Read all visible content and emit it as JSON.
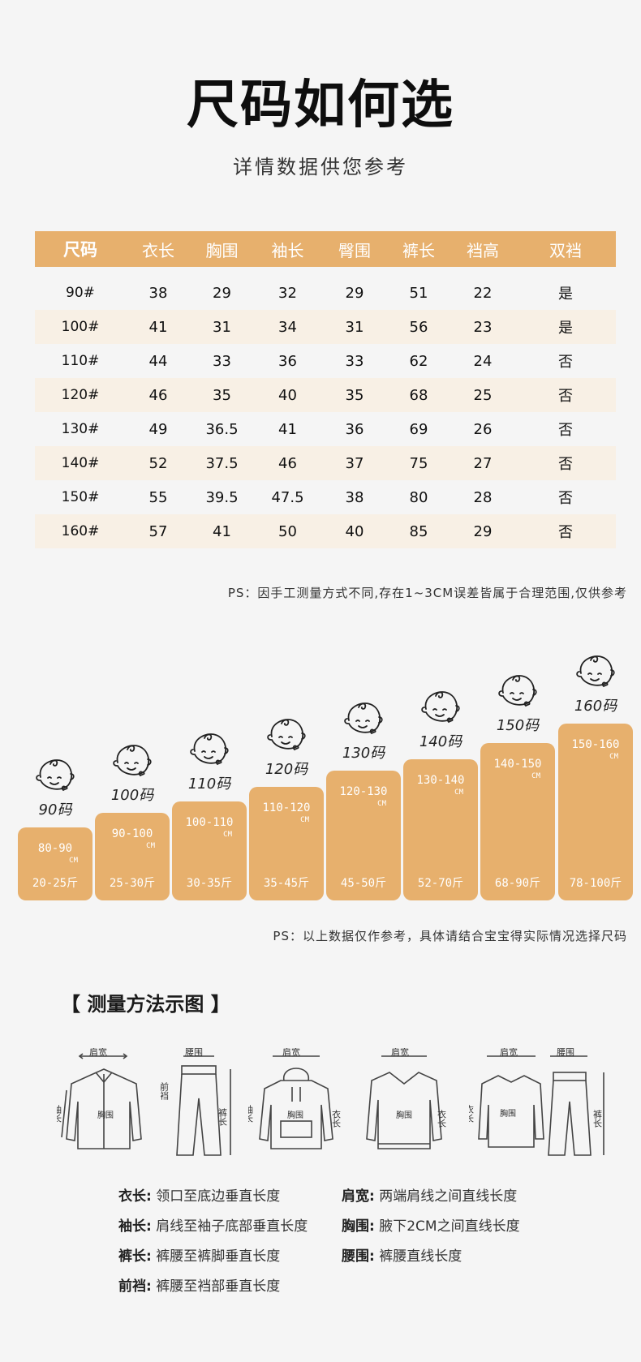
{
  "header": {
    "title": "尺码如何选",
    "subtitle": "详情数据供您参考"
  },
  "size_table": {
    "columns": [
      "尺码",
      "衣长",
      "胸围",
      "袖长",
      "臀围",
      "裤长",
      "裆高",
      "双裆"
    ],
    "rows": [
      [
        "90#",
        "38",
        "29",
        "32",
        "29",
        "51",
        "22",
        "是"
      ],
      [
        "100#",
        "41",
        "31",
        "34",
        "31",
        "56",
        "23",
        "是"
      ],
      [
        "110#",
        "44",
        "33",
        "36",
        "33",
        "62",
        "24",
        "否"
      ],
      [
        "120#",
        "46",
        "35",
        "40",
        "35",
        "68",
        "25",
        "否"
      ],
      [
        "130#",
        "49",
        "36.5",
        "41",
        "36",
        "69",
        "26",
        "否"
      ],
      [
        "140#",
        "52",
        "37.5",
        "46",
        "37",
        "75",
        "27",
        "否"
      ],
      [
        "150#",
        "55",
        "39.5",
        "47.5",
        "38",
        "80",
        "28",
        "否"
      ],
      [
        "160#",
        "57",
        "41",
        "50",
        "40",
        "85",
        "29",
        "否"
      ]
    ]
  },
  "note1": "PS：因手工测量方式不同,存在1~3CM误差皆属于合理范围,仅供参考",
  "size_guide": {
    "unit": "CM",
    "items": [
      {
        "label": "90码",
        "height": "80-90",
        "weight": "20-25斤"
      },
      {
        "label": "100码",
        "height": "90-100",
        "weight": "25-30斤"
      },
      {
        "label": "110码",
        "height": "100-110",
        "weight": "30-35斤"
      },
      {
        "label": "120码",
        "height": "110-120",
        "weight": "35-45斤"
      },
      {
        "label": "130码",
        "height": "120-130",
        "weight": "45-50斤"
      },
      {
        "label": "140码",
        "height": "130-140",
        "weight": "52-70斤"
      },
      {
        "label": "150码",
        "height": "140-150",
        "weight": "68-90斤"
      },
      {
        "label": "160码",
        "height": "150-160",
        "weight": "78-100斤"
      }
    ]
  },
  "note2": "PS：以上数据仅作参考，具体请结合宝宝得实际情况选择尺码",
  "method": {
    "title": "【 测量方法示图 】",
    "diagram_labels": {
      "shoulder": "肩宽",
      "waist": "腰围",
      "sleeve": "袖长",
      "chest": "胸围",
      "length": "衣长",
      "pants_length": "裤长",
      "front_rise": "前裆"
    },
    "definitions": [
      {
        "term": "衣长:",
        "desc": "领口至底边垂直长度"
      },
      {
        "term": "肩宽:",
        "desc": "两端肩线之间直线长度"
      },
      {
        "term": "袖长:",
        "desc": "肩线至袖子底部垂直长度"
      },
      {
        "term": "胸围:",
        "desc": "腋下2CM之间直线长度"
      },
      {
        "term": "裤长:",
        "desc": "裤腰至裤脚垂直长度"
      },
      {
        "term": "腰围:",
        "desc": "裤腰直线长度"
      },
      {
        "term": "前裆:",
        "desc": "裤腰至裆部垂直长度"
      }
    ]
  },
  "colors": {
    "accent": "#e7b06d",
    "row_alt": "#f8f0e5",
    "background": "#f5f5f5"
  }
}
